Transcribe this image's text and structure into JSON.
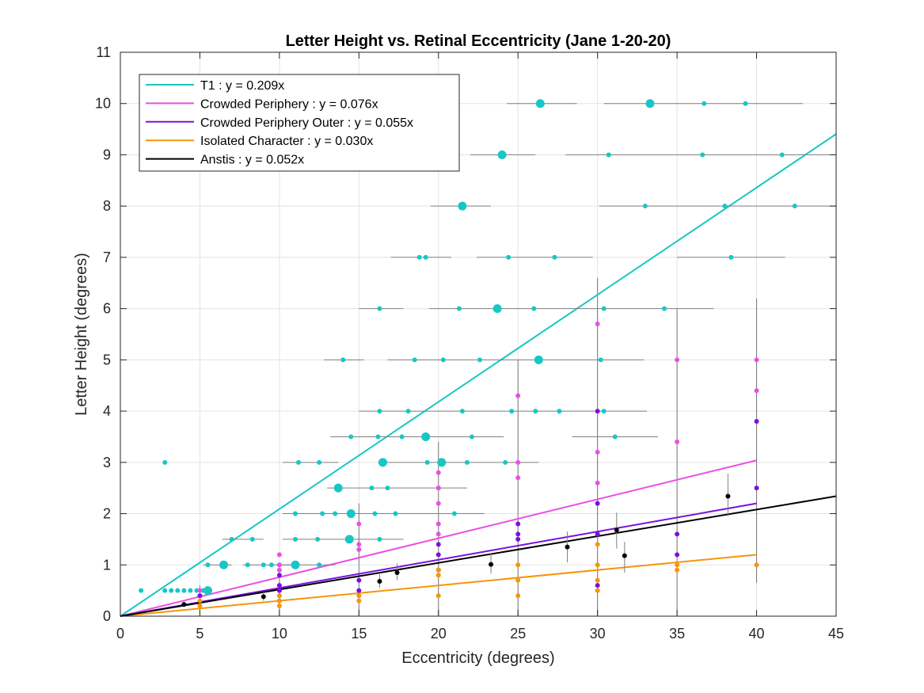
{
  "chart_data": {
    "type": "scatter",
    "title": "Letter Height vs. Retinal Eccentricity (Jane 1-20-20)",
    "xlabel": "Eccentricity (degrees)",
    "ylabel": "Letter Height (degrees)",
    "xlim": [
      0,
      45
    ],
    "ylim": [
      0,
      11
    ],
    "xticks": [
      0,
      5,
      10,
      15,
      20,
      25,
      30,
      35,
      40,
      45
    ],
    "yticks": [
      0,
      1,
      2,
      3,
      4,
      5,
      6,
      7,
      8,
      9,
      10,
      11
    ],
    "grid": true,
    "legend_position": "top-left",
    "series": [
      {
        "name": "T1",
        "color": "#17c7c7",
        "fit_label": "T1 : y = 0.209x",
        "slope": 0.209,
        "fit_range": [
          0,
          45
        ],
        "points": [
          {
            "x": 1.3,
            "y": 0.5
          },
          {
            "x": 2.8,
            "y": 0.5
          },
          {
            "x": 3.2,
            "y": 0.5
          },
          {
            "x": 3.6,
            "y": 0.5
          },
          {
            "x": 4.0,
            "y": 0.5
          },
          {
            "x": 4.4,
            "y": 0.5
          },
          {
            "x": 4.8,
            "y": 0.5
          },
          {
            "x": 5.2,
            "y": 0.5
          },
          {
            "x": 5.5,
            "y": 0.5,
            "big": true
          },
          {
            "x": 2.8,
            "y": 3.0
          },
          {
            "x": 5.5,
            "y": 1.0
          },
          {
            "x": 6.5,
            "y": 1.0,
            "big": true
          },
          {
            "x": 8.0,
            "y": 1.0
          },
          {
            "x": 9.0,
            "y": 1.0
          },
          {
            "x": 9.5,
            "y": 1.0
          },
          {
            "x": 10.0,
            "y": 1.0
          },
          {
            "x": 11.0,
            "y": 1.0,
            "big": true
          },
          {
            "x": 12.5,
            "y": 1.0
          },
          {
            "x": 7.0,
            "y": 1.5
          },
          {
            "x": 8.3,
            "y": 1.5
          },
          {
            "x": 11.0,
            "y": 1.5
          },
          {
            "x": 12.4,
            "y": 1.5
          },
          {
            "x": 14.4,
            "y": 1.5,
            "big": true
          },
          {
            "x": 16.3,
            "y": 1.5
          },
          {
            "x": 11.0,
            "y": 2.0
          },
          {
            "x": 12.7,
            "y": 2.0
          },
          {
            "x": 13.5,
            "y": 2.0
          },
          {
            "x": 14.5,
            "y": 2.0,
            "big": true
          },
          {
            "x": 16.0,
            "y": 2.0
          },
          {
            "x": 17.3,
            "y": 2.0
          },
          {
            "x": 21.0,
            "y": 2.0
          },
          {
            "x": 13.7,
            "y": 2.5,
            "big": true
          },
          {
            "x": 15.8,
            "y": 2.5
          },
          {
            "x": 16.8,
            "y": 2.5
          },
          {
            "x": 20.0,
            "y": 2.5
          },
          {
            "x": 11.2,
            "y": 3.0
          },
          {
            "x": 12.5,
            "y": 3.0
          },
          {
            "x": 16.5,
            "y": 3.0,
            "big": true
          },
          {
            "x": 19.3,
            "y": 3.0
          },
          {
            "x": 20.2,
            "y": 3.0,
            "big": true
          },
          {
            "x": 21.8,
            "y": 3.0
          },
          {
            "x": 24.2,
            "y": 3.0
          },
          {
            "x": 14.5,
            "y": 3.5
          },
          {
            "x": 16.2,
            "y": 3.5
          },
          {
            "x": 17.7,
            "y": 3.5
          },
          {
            "x": 19.2,
            "y": 3.5,
            "big": true
          },
          {
            "x": 22.1,
            "y": 3.5
          },
          {
            "x": 31.1,
            "y": 3.5
          },
          {
            "x": 16.3,
            "y": 4.0
          },
          {
            "x": 18.1,
            "y": 4.0
          },
          {
            "x": 21.5,
            "y": 4.0
          },
          {
            "x": 24.6,
            "y": 4.0
          },
          {
            "x": 26.1,
            "y": 4.0
          },
          {
            "x": 27.6,
            "y": 4.0
          },
          {
            "x": 30.4,
            "y": 4.0
          },
          {
            "x": 14.0,
            "y": 5.0
          },
          {
            "x": 18.5,
            "y": 5.0
          },
          {
            "x": 20.3,
            "y": 5.0
          },
          {
            "x": 22.6,
            "y": 5.0
          },
          {
            "x": 26.3,
            "y": 5.0,
            "big": true
          },
          {
            "x": 30.2,
            "y": 5.0
          },
          {
            "x": 16.3,
            "y": 6.0
          },
          {
            "x": 21.3,
            "y": 6.0
          },
          {
            "x": 23.7,
            "y": 6.0,
            "big": true
          },
          {
            "x": 26.0,
            "y": 6.0
          },
          {
            "x": 30.4,
            "y": 6.0
          },
          {
            "x": 34.2,
            "y": 6.0
          },
          {
            "x": 18.8,
            "y": 7.0
          },
          {
            "x": 19.2,
            "y": 7.0
          },
          {
            "x": 24.4,
            "y": 7.0
          },
          {
            "x": 27.3,
            "y": 7.0
          },
          {
            "x": 38.4,
            "y": 7.0
          },
          {
            "x": 21.5,
            "y": 8.0,
            "big": true
          },
          {
            "x": 33.0,
            "y": 8.0
          },
          {
            "x": 38.0,
            "y": 8.0
          },
          {
            "x": 42.4,
            "y": 8.0
          },
          {
            "x": 24.0,
            "y": 9.0,
            "big": true
          },
          {
            "x": 30.7,
            "y": 9.0
          },
          {
            "x": 36.6,
            "y": 9.0
          },
          {
            "x": 41.6,
            "y": 9.0
          },
          {
            "x": 26.4,
            "y": 10.0,
            "big": true
          },
          {
            "x": 33.3,
            "y": 10.0,
            "big": true
          },
          {
            "x": 36.7,
            "y": 10.0
          },
          {
            "x": 39.3,
            "y": 10.0
          }
        ],
        "xerrors": [
          {
            "y": 1.0,
            "x0": 5.2,
            "x1": 7.0
          },
          {
            "y": 1.0,
            "x0": 7.7,
            "x1": 11.0
          },
          {
            "y": 1.0,
            "x0": 10.2,
            "x1": 13.5
          },
          {
            "y": 1.5,
            "x0": 6.4,
            "x1": 9.0
          },
          {
            "y": 1.5,
            "x0": 10.2,
            "x1": 17.8
          },
          {
            "y": 2.0,
            "x0": 10.2,
            "x1": 22.9
          },
          {
            "y": 2.5,
            "x0": 13.0,
            "x1": 21.8
          },
          {
            "y": 3.0,
            "x0": 10.2,
            "x1": 13.7
          },
          {
            "y": 3.0,
            "x0": 16.2,
            "x1": 26.3
          },
          {
            "y": 3.5,
            "x0": 13.2,
            "x1": 24.1
          },
          {
            "y": 3.5,
            "x0": 28.4,
            "x1": 33.8
          },
          {
            "y": 4.0,
            "x0": 15.0,
            "x1": 33.1
          },
          {
            "y": 5.0,
            "x0": 12.8,
            "x1": 15.3
          },
          {
            "y": 5.0,
            "x0": 16.8,
            "x1": 32.9
          },
          {
            "y": 6.0,
            "x0": 15.0,
            "x1": 17.8
          },
          {
            "y": 6.0,
            "x0": 19.4,
            "x1": 37.3
          },
          {
            "y": 7.0,
            "x0": 17.0,
            "x1": 20.8
          },
          {
            "y": 7.0,
            "x0": 22.4,
            "x1": 29.7
          },
          {
            "y": 7.0,
            "x0": 35.0,
            "x1": 41.8
          },
          {
            "y": 8.0,
            "x0": 19.5,
            "x1": 23.3
          },
          {
            "y": 8.0,
            "x0": 30.1,
            "x1": 45.0
          },
          {
            "y": 9.0,
            "x0": 22.0,
            "x1": 26.1
          },
          {
            "y": 9.0,
            "x0": 28.0,
            "x1": 45.0
          },
          {
            "y": 10.0,
            "x0": 24.3,
            "x1": 28.7
          },
          {
            "y": 10.0,
            "x0": 30.4,
            "x1": 42.9
          }
        ]
      },
      {
        "name": "Crowded Periphery",
        "color": "#ea4fe6",
        "fit_label": "Crowded Periphery : y = 0.076x",
        "slope": 0.076,
        "fit_range": [
          0,
          40
        ],
        "points": [
          {
            "x": 5,
            "y": 0.4
          },
          {
            "x": 5,
            "y": 0.5
          },
          {
            "x": 10,
            "y": 0.4
          },
          {
            "x": 10,
            "y": 0.5
          },
          {
            "x": 10,
            "y": 0.9
          },
          {
            "x": 10,
            "y": 1.0
          },
          {
            "x": 10,
            "y": 1.2
          },
          {
            "x": 15,
            "y": 1.3
          },
          {
            "x": 15,
            "y": 1.4
          },
          {
            "x": 15,
            "y": 1.8
          },
          {
            "x": 20,
            "y": 1.6
          },
          {
            "x": 20,
            "y": 1.8
          },
          {
            "x": 20,
            "y": 2.2
          },
          {
            "x": 20,
            "y": 2.5
          },
          {
            "x": 20,
            "y": 2.8
          },
          {
            "x": 25,
            "y": 2.7
          },
          {
            "x": 25,
            "y": 3.0
          },
          {
            "x": 25,
            "y": 4.3
          },
          {
            "x": 30,
            "y": 1.6
          },
          {
            "x": 30,
            "y": 2.6
          },
          {
            "x": 30,
            "y": 3.2
          },
          {
            "x": 30,
            "y": 5.7
          },
          {
            "x": 35,
            "y": 3.4
          },
          {
            "x": 35,
            "y": 5.0
          },
          {
            "x": 40,
            "y": 4.4
          },
          {
            "x": 40,
            "y": 5.0
          }
        ]
      },
      {
        "name": "Crowded Periphery Outer",
        "color": "#7a10e0",
        "fit_label": "Crowded Periphery Outer : y = 0.055x",
        "slope": 0.055,
        "fit_range": [
          0,
          40
        ],
        "points": [
          {
            "x": 5,
            "y": 0.4
          },
          {
            "x": 10,
            "y": 0.5
          },
          {
            "x": 10,
            "y": 0.6
          },
          {
            "x": 10,
            "y": 0.8
          },
          {
            "x": 15,
            "y": 0.5
          },
          {
            "x": 15,
            "y": 0.7
          },
          {
            "x": 20,
            "y": 0.9
          },
          {
            "x": 20,
            "y": 1.2
          },
          {
            "x": 20,
            "y": 1.4
          },
          {
            "x": 25,
            "y": 1.5
          },
          {
            "x": 25,
            "y": 1.6
          },
          {
            "x": 25,
            "y": 1.8
          },
          {
            "x": 30,
            "y": 0.6
          },
          {
            "x": 30,
            "y": 1.6
          },
          {
            "x": 30,
            "y": 2.2
          },
          {
            "x": 30,
            "y": 4.0
          },
          {
            "x": 35,
            "y": 1.2
          },
          {
            "x": 35,
            "y": 1.6
          },
          {
            "x": 40,
            "y": 2.5
          },
          {
            "x": 40,
            "y": 3.8
          }
        ]
      },
      {
        "name": "Isolated Character",
        "color": "#f5960a",
        "fit_label": "Isolated Character : y = 0.030x",
        "slope": 0.03,
        "fit_range": [
          0,
          40
        ],
        "points": [
          {
            "x": 5,
            "y": 0.2
          },
          {
            "x": 5,
            "y": 0.3
          },
          {
            "x": 10,
            "y": 0.2
          },
          {
            "x": 10,
            "y": 0.3
          },
          {
            "x": 10,
            "y": 0.4
          },
          {
            "x": 15,
            "y": 0.3
          },
          {
            "x": 15,
            "y": 0.4
          },
          {
            "x": 20,
            "y": 0.4
          },
          {
            "x": 20,
            "y": 0.8
          },
          {
            "x": 20,
            "y": 0.9
          },
          {
            "x": 25,
            "y": 0.4
          },
          {
            "x": 25,
            "y": 0.7
          },
          {
            "x": 25,
            "y": 1.0
          },
          {
            "x": 30,
            "y": 0.5
          },
          {
            "x": 30,
            "y": 0.7
          },
          {
            "x": 30,
            "y": 1.0
          },
          {
            "x": 30,
            "y": 1.4
          },
          {
            "x": 35,
            "y": 0.9
          },
          {
            "x": 35,
            "y": 1.0
          },
          {
            "x": 40,
            "y": 1.0
          }
        ]
      },
      {
        "name": "Anstis",
        "color": "#000000",
        "fit_label": "Anstis : y = 0.052x",
        "slope": 0.052,
        "fit_range": [
          0,
          45
        ],
        "points": [
          {
            "x": 4.0,
            "y": 0.23
          },
          {
            "x": 9.0,
            "y": 0.38
          },
          {
            "x": 16.3,
            "y": 0.68
          },
          {
            "x": 17.4,
            "y": 0.85
          },
          {
            "x": 23.3,
            "y": 1.01
          },
          {
            "x": 28.1,
            "y": 1.35
          },
          {
            "x": 31.2,
            "y": 1.68
          },
          {
            "x": 31.7,
            "y": 1.18
          },
          {
            "x": 38.2,
            "y": 2.34
          }
        ],
        "yerrors": [
          {
            "x": 4.0,
            "y0": 0.18,
            "y1": 0.28
          },
          {
            "x": 9.0,
            "y0": 0.3,
            "y1": 0.47
          },
          {
            "x": 16.3,
            "y0": 0.55,
            "y1": 0.85
          },
          {
            "x": 17.4,
            "y0": 0.7,
            "y1": 1.03
          },
          {
            "x": 23.3,
            "y0": 0.83,
            "y1": 1.22
          },
          {
            "x": 28.1,
            "y0": 1.05,
            "y1": 1.65
          },
          {
            "x": 31.2,
            "y0": 1.32,
            "y1": 2.02
          },
          {
            "x": 31.7,
            "y0": 0.85,
            "y1": 1.45
          },
          {
            "x": 38.2,
            "y0": 1.95,
            "y1": 2.78
          }
        ]
      }
    ],
    "vertical_errorbars": [
      {
        "x": 5,
        "y0": 0.0,
        "y1": 0.6
      },
      {
        "x": 10,
        "y0": 0.0,
        "y1": 1.0
      },
      {
        "x": 15,
        "y0": 0.0,
        "y1": 2.2
      },
      {
        "x": 20,
        "y0": 0.0,
        "y1": 3.4
      },
      {
        "x": 25,
        "y0": 0.0,
        "y1": 5.0
      },
      {
        "x": 30,
        "y0": 0.0,
        "y1": 6.6
      },
      {
        "x": 35,
        "y0": 0.0,
        "y1": 6.0
      },
      {
        "x": 40,
        "y0": 0.65,
        "y1": 6.2
      }
    ]
  }
}
